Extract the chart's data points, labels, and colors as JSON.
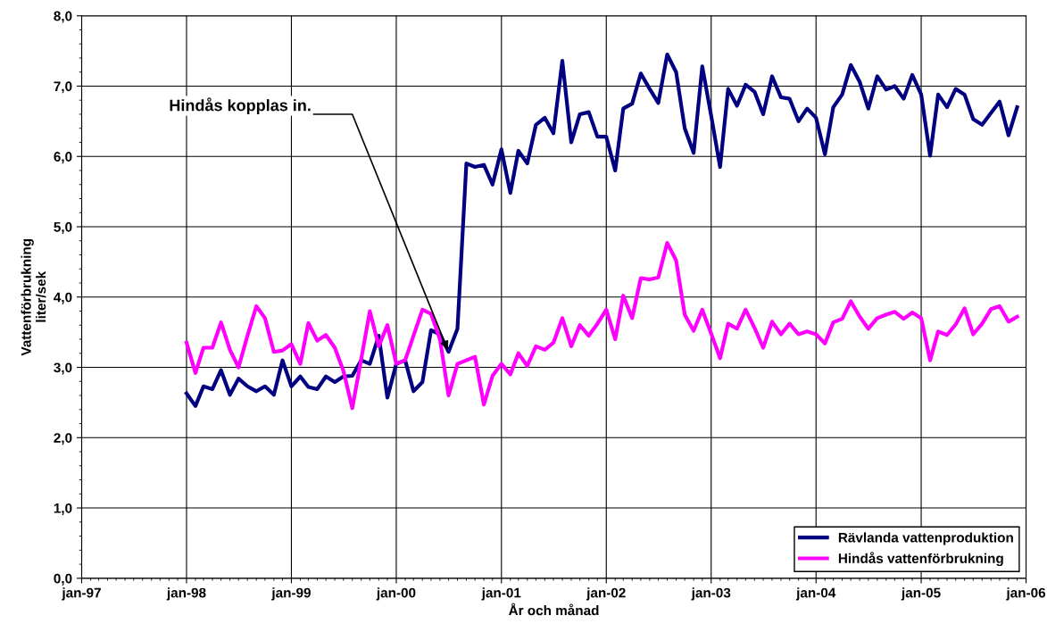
{
  "chart_data": {
    "type": "line",
    "xlabel": "År och månad",
    "ylabel": "Vattenförbrukning\nliter/sek",
    "x": [
      "1998-01",
      "1998-02",
      "1998-03",
      "1998-04",
      "1998-05",
      "1998-06",
      "1998-07",
      "1998-08",
      "1998-09",
      "1998-10",
      "1998-11",
      "1998-12",
      "1999-01",
      "1999-02",
      "1999-03",
      "1999-04",
      "1999-05",
      "1999-06",
      "1999-07",
      "1999-08",
      "1999-09",
      "1999-10",
      "1999-11",
      "1999-12",
      "2000-01",
      "2000-02",
      "2000-03",
      "2000-04",
      "2000-05",
      "2000-06",
      "2000-07",
      "2000-08",
      "2000-09",
      "2000-10",
      "2000-11",
      "2000-12",
      "2001-01",
      "2001-02",
      "2001-03",
      "2001-04",
      "2001-05",
      "2001-06",
      "2001-07",
      "2001-08",
      "2001-09",
      "2001-10",
      "2001-11",
      "2001-12",
      "2002-01",
      "2002-02",
      "2002-03",
      "2002-04",
      "2002-05",
      "2002-06",
      "2002-07",
      "2002-08",
      "2002-09",
      "2002-10",
      "2002-11",
      "2002-12",
      "2003-01",
      "2003-02",
      "2003-03",
      "2003-04",
      "2003-05",
      "2003-06",
      "2003-07",
      "2003-08",
      "2003-09",
      "2003-10",
      "2003-11",
      "2003-12",
      "2004-01",
      "2004-02",
      "2004-03",
      "2004-04",
      "2004-05",
      "2004-06",
      "2004-07",
      "2004-08",
      "2004-09",
      "2004-10",
      "2004-11",
      "2004-12",
      "2005-01",
      "2005-02",
      "2005-03",
      "2005-04",
      "2005-05",
      "2005-06",
      "2005-07",
      "2005-08",
      "2005-09",
      "2005-10",
      "2005-11",
      "2005-12"
    ],
    "series": [
      {
        "name": "Rävlanda vattenproduktion",
        "color": "#000080",
        "values": [
          2.63,
          2.45,
          2.73,
          2.69,
          2.96,
          2.61,
          2.84,
          2.73,
          2.66,
          2.73,
          2.61,
          3.1,
          2.73,
          2.87,
          2.72,
          2.69,
          2.87,
          2.79,
          2.87,
          2.88,
          3.1,
          3.05,
          3.45,
          2.57,
          3.05,
          3.1,
          2.66,
          2.79,
          3.53,
          3.47,
          3.22,
          3.55,
          5.9,
          5.85,
          5.88,
          5.6,
          6.1,
          5.48,
          6.08,
          5.9,
          6.45,
          6.55,
          6.33,
          7.36,
          6.2,
          6.6,
          6.63,
          6.28,
          6.28,
          5.8,
          6.68,
          6.75,
          7.18,
          6.96,
          6.76,
          7.45,
          7.2,
          6.4,
          6.05,
          7.28,
          6.58,
          5.85,
          6.96,
          6.72,
          7.02,
          6.92,
          6.6,
          7.14,
          6.84,
          6.82,
          6.5,
          6.68,
          6.55,
          6.03,
          6.7,
          6.88,
          7.3,
          7.06,
          6.68,
          7.14,
          6.95,
          7.0,
          6.82,
          7.16,
          6.88,
          6.01,
          6.88,
          6.7,
          6.96,
          6.88,
          6.53,
          6.45,
          6.62,
          6.78,
          6.3,
          6.7
        ]
      },
      {
        "name": "Hindås vattenförbrukning",
        "color": "#ff00ff",
        "values": [
          3.35,
          2.92,
          3.28,
          3.28,
          3.64,
          3.25,
          3.0,
          3.45,
          3.87,
          3.7,
          3.22,
          3.24,
          3.33,
          3.05,
          3.63,
          3.38,
          3.46,
          3.28,
          2.95,
          2.42,
          3.12,
          3.8,
          3.3,
          3.6,
          3.05,
          3.1,
          3.45,
          3.82,
          3.76,
          3.4,
          2.6,
          3.05,
          3.1,
          3.15,
          2.47,
          2.88,
          3.05,
          2.9,
          3.2,
          3.02,
          3.3,
          3.25,
          3.35,
          3.7,
          3.3,
          3.6,
          3.45,
          3.62,
          3.82,
          3.4,
          4.02,
          3.7,
          4.27,
          4.25,
          4.28,
          4.77,
          4.52,
          3.75,
          3.52,
          3.82,
          3.48,
          3.13,
          3.62,
          3.55,
          3.82,
          3.56,
          3.28,
          3.65,
          3.47,
          3.62,
          3.47,
          3.51,
          3.47,
          3.34,
          3.64,
          3.69,
          3.94,
          3.72,
          3.55,
          3.7,
          3.75,
          3.79,
          3.69,
          3.78,
          3.7,
          3.1,
          3.51,
          3.46,
          3.61,
          3.84,
          3.47,
          3.62,
          3.83,
          3.87,
          3.65,
          3.72
        ]
      }
    ],
    "xlim": [
      "1997-01",
      "2006-01"
    ],
    "xticks": [
      {
        "value": "1997-01",
        "label": "jan-97"
      },
      {
        "value": "1998-01",
        "label": "jan-98"
      },
      {
        "value": "1999-01",
        "label": "jan-99"
      },
      {
        "value": "2000-01",
        "label": "jan-00"
      },
      {
        "value": "2001-01",
        "label": "jan-01"
      },
      {
        "value": "2002-01",
        "label": "jan-02"
      },
      {
        "value": "2003-01",
        "label": "jan-03"
      },
      {
        "value": "2004-01",
        "label": "jan-04"
      },
      {
        "value": "2005-01",
        "label": "jan-05"
      },
      {
        "value": "2006-01",
        "label": "jan-06"
      }
    ],
    "ylim": [
      0,
      8
    ],
    "yticks": [
      {
        "value": 0,
        "label": "0,0"
      },
      {
        "value": 1,
        "label": "1,0"
      },
      {
        "value": 2,
        "label": "2,0"
      },
      {
        "value": 3,
        "label": "3,0"
      },
      {
        "value": 4,
        "label": "4,0"
      },
      {
        "value": 5,
        "label": "5,0"
      },
      {
        "value": 6,
        "label": "6,0"
      },
      {
        "value": 7,
        "label": "7,0"
      },
      {
        "value": 8,
        "label": "8,0"
      }
    ],
    "annotations": [
      {
        "text": "Hindås kopplas in.",
        "x": "2000-07",
        "y": 3.22
      }
    ],
    "grid": true,
    "legend": "bottom right",
    "marker": "none",
    "line_style": "solid"
  }
}
